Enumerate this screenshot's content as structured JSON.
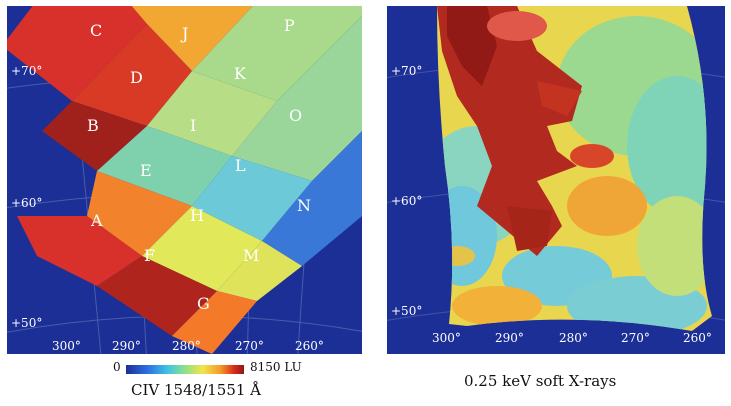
{
  "left_panel": {
    "region_labels": [
      "A",
      "B",
      "C",
      "D",
      "E",
      "F",
      "G",
      "H",
      "I",
      "J",
      "K",
      "L",
      "M",
      "N",
      "O",
      "P"
    ],
    "lat_labels": [
      "+70°",
      "+60°",
      "+50°"
    ],
    "lon_labels": [
      "300°",
      "290°",
      "280°",
      "270°",
      "260°"
    ],
    "colorbar": {
      "min_label": "0",
      "max_label": "8150 LU"
    },
    "caption": "CIV 1548/1551 Å"
  },
  "right_panel": {
    "lat_labels": [
      "+70°",
      "+60°",
      "+50°"
    ],
    "lon_labels": [
      "300°",
      "290°",
      "280°",
      "270°",
      "260°"
    ],
    "caption": "0.25 keV soft X-rays"
  },
  "colors": {
    "background": "#1c2f96",
    "deep_red": "#a0201c",
    "red": "#d8302a",
    "orange": "#f2832c",
    "yellow": "#ece556",
    "green": "#b9df80",
    "teal": "#7fd1ae",
    "cyan": "#5cc5e0",
    "blue": "#3a78d8"
  }
}
